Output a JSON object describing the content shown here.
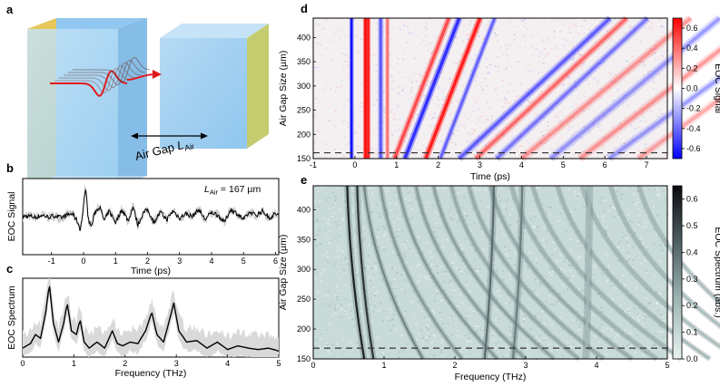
{
  "panels": {
    "a": {
      "label": "a",
      "annotation": "Air Gap ",
      "annotation_symbol": "L",
      "annotation_sub": "Air",
      "colors": {
        "left_block": "#8fc6ee",
        "left_side": "#e6c75a",
        "right_block": "#8fc6ee",
        "right_side": "#c4cc70",
        "pulse": "#e31a1c"
      }
    },
    "b": {
      "label": "b",
      "annotation_symbol": "L",
      "annotation_sub": "Air",
      "annotation_value": " = 167 µm"
    },
    "c": {
      "label": "c"
    },
    "d": {
      "label": "d"
    },
    "e": {
      "label": "e"
    }
  },
  "chart_data": [
    {
      "id": "b",
      "type": "line",
      "xlabel": "Time (ps)",
      "ylabel": "EOC Signal",
      "xlim": [
        -1.9,
        6.1
      ],
      "xticks": [
        -1,
        0,
        1,
        2,
        3,
        4,
        5,
        6
      ],
      "xticklabels": [
        "-1",
        "0",
        "1",
        "2",
        "3",
        "4",
        "5",
        "6"
      ],
      "yticks": [],
      "series": [
        {
          "x": [
            -1.9,
            -1.7,
            -1.5,
            -1.3,
            -1.1,
            -0.9,
            -0.7,
            -0.5,
            -0.35,
            -0.2,
            -0.1,
            0.0,
            0.05,
            0.1,
            0.15,
            0.25,
            0.35,
            0.5,
            0.65,
            0.8,
            1.0,
            1.2,
            1.4,
            1.55,
            1.7,
            1.85,
            2.0,
            2.2,
            2.4,
            2.6,
            2.8,
            3.0,
            3.2,
            3.4,
            3.6,
            3.8,
            4.0,
            4.2,
            4.4,
            4.6,
            4.8,
            5.0,
            5.2,
            5.4,
            5.6,
            5.8,
            6.0,
            6.1
          ],
          "y": [
            0.0,
            0.02,
            -0.03,
            0.05,
            -0.02,
            0.03,
            -0.04,
            0.06,
            0.1,
            -0.15,
            -0.45,
            0.3,
            0.95,
            0.7,
            -0.1,
            -0.35,
            0.15,
            0.35,
            -0.15,
            0.2,
            -0.2,
            0.25,
            -0.15,
            0.35,
            -0.3,
            0.1,
            0.25,
            -0.2,
            0.15,
            -0.1,
            0.2,
            -0.05,
            0.1,
            0.0,
            0.25,
            -0.1,
            0.15,
            0.05,
            -0.2,
            0.25,
            0.1,
            -0.1,
            0.15,
            0.05,
            0.2,
            -0.05,
            0.1,
            0.05
          ]
        }
      ]
    },
    {
      "id": "c",
      "type": "line",
      "xlabel": "Frequency (THz)",
      "ylabel": "EOC Spectrum",
      "xlim": [
        0,
        5
      ],
      "ylim": [
        0,
        1.05
      ],
      "xticks": [
        0,
        1,
        2,
        3,
        4,
        5
      ],
      "xticklabels": [
        "0",
        "1",
        "2",
        "3",
        "4",
        "5"
      ],
      "yticks": [],
      "series": [
        {
          "x": [
            0.0,
            0.15,
            0.25,
            0.35,
            0.45,
            0.52,
            0.6,
            0.7,
            0.8,
            0.87,
            0.95,
            1.05,
            1.12,
            1.2,
            1.3,
            1.45,
            1.6,
            1.75,
            1.85,
            1.95,
            2.1,
            2.25,
            2.4,
            2.52,
            2.62,
            2.75,
            2.85,
            2.95,
            3.05,
            3.2,
            3.4,
            3.6,
            3.8,
            4.0,
            4.2,
            4.4,
            4.6,
            4.8,
            5.0
          ],
          "y": [
            0.12,
            0.18,
            0.3,
            0.25,
            0.6,
            0.97,
            0.45,
            0.2,
            0.45,
            0.72,
            0.35,
            0.3,
            0.5,
            0.2,
            0.12,
            0.2,
            0.12,
            0.35,
            0.18,
            0.15,
            0.2,
            0.18,
            0.35,
            0.6,
            0.3,
            0.2,
            0.45,
            0.72,
            0.35,
            0.2,
            0.22,
            0.12,
            0.2,
            0.1,
            0.15,
            0.12,
            0.1,
            0.12,
            0.08
          ]
        }
      ]
    },
    {
      "id": "d",
      "type": "heatmap",
      "xlabel": "Time (ps)",
      "ylabel": "Air Gap Size (µm)",
      "xlim": [
        -1,
        7.5
      ],
      "ylim": [
        150,
        440
      ],
      "xticks": [
        -1,
        0,
        1,
        2,
        3,
        4,
        5,
        6,
        7
      ],
      "xticklabels": [
        "-1",
        "0",
        "1",
        "2",
        "3",
        "4",
        "5",
        "6",
        "7"
      ],
      "yticks": [
        150,
        200,
        250,
        300,
        350,
        400
      ],
      "yticklabels": [
        "150",
        "200",
        "250",
        "300",
        "350",
        "400"
      ],
      "colorbar": {
        "label": "EOC Signal",
        "range": [
          -0.7,
          0.7
        ],
        "ticks": [
          0.6,
          0.4,
          0.2,
          0.0,
          -0.2,
          -0.4,
          -0.6
        ],
        "ticklabels": [
          "0.6",
          "0.4",
          "0.2",
          "0.0",
          "-0.2",
          "-0.4",
          "-0.6"
        ],
        "colors": [
          "#0000ff",
          "#ffffff",
          "#ff0000"
        ]
      },
      "reference_line_y": 162,
      "series": [
        {
          "name": "",
          "kind": "vertical",
          "x0": -0.08,
          "slope": 0,
          "amp": -1.0,
          "width": 0.045
        },
        {
          "name": "",
          "kind": "vertical",
          "x0": 0.25,
          "slope": 0,
          "amp": 1.0,
          "width": 0.05
        },
        {
          "name": "",
          "kind": "vertical",
          "x0": 0.32,
          "slope": 0,
          "amp": 0.9,
          "width": 0.05
        },
        {
          "name": "",
          "kind": "vertical",
          "x0": 0.62,
          "slope": 0,
          "amp": -0.55,
          "width": 0.06
        },
        {
          "name": "",
          "kind": "vertical",
          "x0": 0.78,
          "slope": 0,
          "amp": 0.45,
          "width": 0.05
        },
        {
          "name": "",
          "kind": "sloped",
          "x0": 0.95,
          "slope": 0.0045,
          "amp": 0.6,
          "width": 0.07
        },
        {
          "name": "",
          "kind": "sloped",
          "x0": 1.2,
          "slope": 0.0045,
          "amp": -0.75,
          "width": 0.07
        },
        {
          "name": "",
          "kind": "sloped",
          "x0": 1.7,
          "slope": 0.0045,
          "amp": 0.85,
          "width": 0.07
        },
        {
          "name": "",
          "kind": "sloped",
          "x0": 2.05,
          "slope": 0.0045,
          "amp": -0.5,
          "width": 0.06
        },
        {
          "name": "",
          "kind": "sloped",
          "x0": 2.5,
          "slope": 0.0125,
          "amp": -0.5,
          "width": 0.08
        },
        {
          "name": "",
          "kind": "sloped",
          "x0": 2.9,
          "slope": 0.0125,
          "amp": 0.45,
          "width": 0.08
        },
        {
          "name": "",
          "kind": "sloped",
          "x0": 3.4,
          "slope": 0.0125,
          "amp": -0.4,
          "width": 0.08
        },
        {
          "name": "",
          "kind": "sloped",
          "x0": 4.0,
          "slope": 0.014,
          "amp": 0.3,
          "width": 0.09
        },
        {
          "name": "",
          "kind": "sloped",
          "x0": 4.7,
          "slope": 0.014,
          "amp": -0.3,
          "width": 0.09
        },
        {
          "name": "",
          "kind": "sloped",
          "x0": 5.4,
          "slope": 0.015,
          "amp": 0.3,
          "width": 0.09
        },
        {
          "name": "",
          "kind": "sloped",
          "x0": 6.1,
          "slope": 0.016,
          "amp": -0.28,
          "width": 0.09
        },
        {
          "name": "",
          "kind": "sloped",
          "x0": 6.8,
          "slope": 0.016,
          "amp": 0.25,
          "width": 0.09
        }
      ]
    },
    {
      "id": "e",
      "type": "heatmap",
      "xlabel": "Frequency (THz)",
      "ylabel": "Air Gap Size (µm)",
      "xlim": [
        0,
        5
      ],
      "ylim": [
        150,
        440
      ],
      "xticks": [
        0,
        1,
        2,
        3,
        4,
        5
      ],
      "xticklabels": [
        "0",
        "1",
        "2",
        "3",
        "4",
        "5"
      ],
      "yticks": [
        150,
        200,
        250,
        300,
        350,
        400
      ],
      "yticklabels": [
        "150",
        "200",
        "250",
        "300",
        "350",
        "400"
      ],
      "colorbar": {
        "label": "EOC Spectrum (abs.)",
        "range": [
          0,
          0.65
        ],
        "ticks": [
          0.6,
          0.5,
          0.4,
          0.3,
          0.2,
          0.1,
          0.0
        ],
        "ticklabels": [
          "0.6",
          "0.5",
          "0.4",
          "0.3",
          "0.2",
          "0.1",
          "0.0"
        ],
        "colors": [
          "#e8f3f1",
          "#9bb3b2",
          "#4a5a5e",
          "#0a0a10"
        ]
      },
      "reference_line_y": 168,
      "series": [
        {
          "name": "",
          "f440": 0.48,
          "f150": 0.72,
          "amp": 0.6,
          "width": 0.03
        },
        {
          "name": "",
          "f440": 0.62,
          "f150": 0.85,
          "amp": 0.55,
          "width": 0.03
        },
        {
          "name": "",
          "f440": 0.72,
          "f150": 1.55,
          "amp": 0.35,
          "width": 0.025
        },
        {
          "name": "",
          "f440": 0.95,
          "f150": 2.1,
          "amp": 0.3,
          "width": 0.025
        },
        {
          "name": "",
          "f440": 1.2,
          "f150": 2.6,
          "amp": 0.3,
          "width": 0.025
        },
        {
          "name": "",
          "f440": 1.45,
          "f150": 3.0,
          "amp": 0.28,
          "width": 0.025
        },
        {
          "name": "",
          "f440": 1.7,
          "f150": 3.4,
          "amp": 0.28,
          "width": 0.025
        },
        {
          "name": "",
          "f440": 1.95,
          "f150": 3.75,
          "amp": 0.25,
          "width": 0.025
        },
        {
          "name": "",
          "f440": 2.2,
          "f150": 4.1,
          "amp": 0.25,
          "width": 0.025
        },
        {
          "name": "",
          "f440": 2.5,
          "f150": 4.5,
          "amp": 0.25,
          "width": 0.025
        },
        {
          "name": "",
          "f440": 2.8,
          "f150": 4.85,
          "amp": 0.22,
          "width": 0.025
        },
        {
          "name": "",
          "f440": 3.1,
          "f150": 5.2,
          "amp": 0.22,
          "width": 0.025
        },
        {
          "name": "",
          "f440": 3.45,
          "f150": 5.6,
          "amp": 0.22,
          "width": 0.025
        },
        {
          "name": "",
          "f440": 3.8,
          "f150": 6.0,
          "amp": 0.2,
          "width": 0.025
        },
        {
          "name": "",
          "f440": 4.2,
          "f150": 6.4,
          "amp": 0.2,
          "width": 0.025
        },
        {
          "name": "",
          "f440": 4.6,
          "f150": 6.8,
          "amp": 0.2,
          "width": 0.025
        },
        {
          "name": "",
          "f440": 2.55,
          "f150": 2.42,
          "amp": 0.4,
          "width": 0.03
        },
        {
          "name": "",
          "f440": 2.95,
          "f150": 2.82,
          "amp": 0.35,
          "width": 0.03
        },
        {
          "name": "",
          "f440": 3.9,
          "f150": 3.85,
          "amp": 0.2,
          "width": 0.035
        }
      ]
    }
  ]
}
